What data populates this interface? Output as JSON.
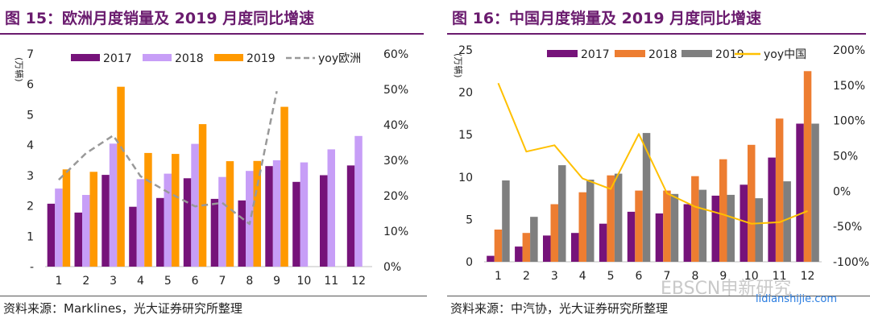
{
  "figures": [
    {
      "title": "图 15：欧洲月度销量及 2019 月度同比增速",
      "source": "资料来源：Marklines，光大证券研究所整理",
      "accent": "#6a1b6e"
    },
    {
      "title": "图 16：中国月度销量及 2019 月度同比增速",
      "source": "资料来源：中汽协，光大证券研究所整理",
      "accent": "#6a1b6e"
    }
  ],
  "watermark": {
    "line1": "EBSCN申新研究",
    "line2": "lidianshijie.com"
  },
  "chart_data": [
    {
      "type": "bar",
      "title": "",
      "ylabel": "(万辆)",
      "ylim": [
        0,
        7
      ],
      "yticks": [
        "-",
        "1",
        "2",
        "3",
        "4",
        "5",
        "6",
        "7"
      ],
      "y2lim": [
        0,
        60
      ],
      "y2ticks": [
        "0%",
        "10%",
        "20%",
        "30%",
        "40%",
        "50%",
        "60%"
      ],
      "categories": [
        "1",
        "2",
        "3",
        "4",
        "5",
        "6",
        "7",
        "8",
        "9",
        "10",
        "11",
        "12"
      ],
      "legend_position": "top",
      "series": [
        {
          "name": "2017",
          "color": "#76137a",
          "values": [
            2.07,
            1.78,
            3.02,
            1.97,
            2.26,
            2.91,
            2.23,
            2.18,
            3.31,
            2.79,
            3.01,
            3.33
          ]
        },
        {
          "name": "2018",
          "color": "#c79ef7",
          "values": [
            2.57,
            2.36,
            4.05,
            2.88,
            3.06,
            4.04,
            2.95,
            3.15,
            3.5,
            3.43,
            3.86,
            4.3
          ]
        },
        {
          "name": "2019",
          "color": "#ff9900",
          "values": [
            3.2,
            3.12,
            5.92,
            3.74,
            3.71,
            4.69,
            3.47,
            3.48,
            5.26,
            null,
            null,
            null
          ]
        }
      ],
      "line_series": {
        "name": "yoy欧洲",
        "color": "#999999",
        "dashed": true,
        "axis": "right",
        "values": [
          24.5,
          32.0,
          37.0,
          25.5,
          21.0,
          17.0,
          18.0,
          12.0,
          49.5,
          null,
          null,
          null
        ]
      }
    },
    {
      "type": "bar",
      "title": "",
      "ylabel": "(万辆)",
      "ylim": [
        0,
        25
      ],
      "yticks": [
        "0",
        "5",
        "10",
        "15",
        "20",
        "25"
      ],
      "y2lim": [
        -100,
        200
      ],
      "y2ticks": [
        "-100%",
        "-50%",
        "0%",
        "50%",
        "100%",
        "150%",
        "200%"
      ],
      "categories": [
        "1",
        "2",
        "3",
        "4",
        "5",
        "6",
        "7",
        "8",
        "9",
        "10",
        "11",
        "12"
      ],
      "legend_position": "top",
      "series": [
        {
          "name": "2017",
          "color": "#76137a",
          "values": [
            0.7,
            1.8,
            3.1,
            3.4,
            4.5,
            5.9,
            5.7,
            6.8,
            7.8,
            9.1,
            12.3,
            16.3
          ]
        },
        {
          "name": "2018",
          "color": "#ed7d31",
          "values": [
            3.8,
            3.4,
            6.8,
            8.2,
            10.2,
            8.4,
            8.4,
            10.1,
            12.1,
            13.8,
            16.9,
            22.5
          ]
        },
        {
          "name": "2019",
          "color": "#7f7f7f",
          "values": [
            9.6,
            5.3,
            11.4,
            9.7,
            10.4,
            15.2,
            8.0,
            8.5,
            7.9,
            7.5,
            9.5,
            16.3
          ]
        }
      ],
      "line_series": {
        "name": "yoy中国",
        "color": "#ffc000",
        "dashed": false,
        "axis": "right",
        "values": [
          153,
          56,
          65,
          18,
          3,
          81,
          -3,
          -22,
          -33,
          -46,
          -44,
          -28
        ]
      }
    }
  ]
}
